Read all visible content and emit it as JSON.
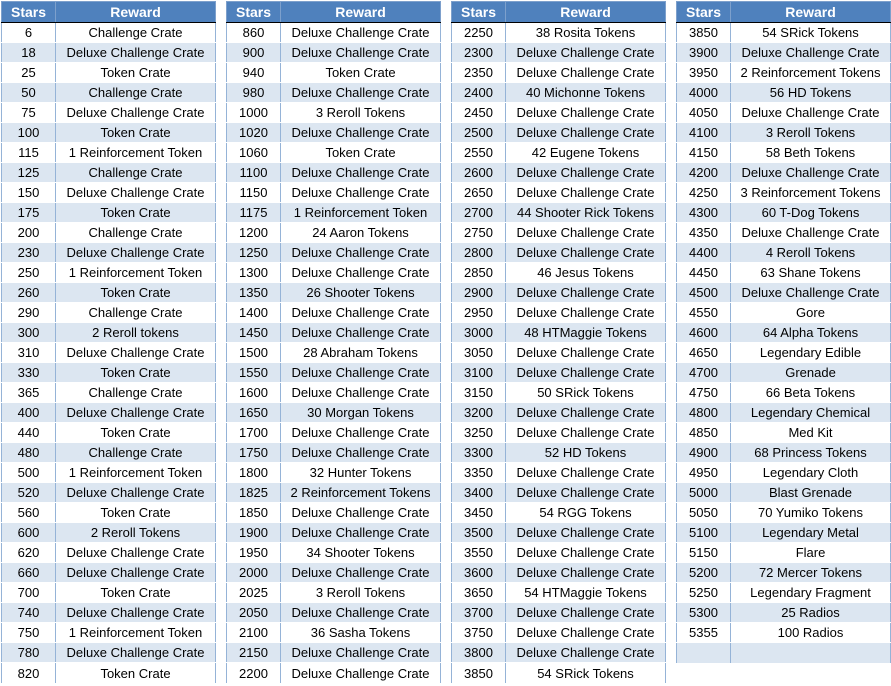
{
  "header": {
    "stars": "Stars",
    "reward": "Reward"
  },
  "tables": [
    {
      "rows": [
        [
          "6",
          "Challenge Crate"
        ],
        [
          "18",
          "Deluxe Challenge Crate"
        ],
        [
          "25",
          "Token Crate"
        ],
        [
          "50",
          "Challenge Crate"
        ],
        [
          "75",
          "Deluxe Challenge Crate"
        ],
        [
          "100",
          "Token Crate"
        ],
        [
          "115",
          "1 Reinforcement Token"
        ],
        [
          "125",
          "Challenge Crate"
        ],
        [
          "150",
          "Deluxe Challenge Crate"
        ],
        [
          "175",
          "Token Crate"
        ],
        [
          "200",
          "Challenge Crate"
        ],
        [
          "230",
          "Deluxe Challenge Crate"
        ],
        [
          "250",
          "1 Reinforcement Token"
        ],
        [
          "260",
          "Token Crate"
        ],
        [
          "290",
          "Challenge Crate"
        ],
        [
          "300",
          "2 Reroll tokens"
        ],
        [
          "310",
          "Deluxe Challenge Crate"
        ],
        [
          "330",
          "Token Crate"
        ],
        [
          "365",
          "Challenge Crate"
        ],
        [
          "400",
          "Deluxe Challenge Crate"
        ],
        [
          "440",
          "Token Crate"
        ],
        [
          "480",
          "Challenge Crate"
        ],
        [
          "500",
          "1 Reinforcement Token"
        ],
        [
          "520",
          "Deluxe Challenge Crate"
        ],
        [
          "560",
          "Token Crate"
        ],
        [
          "600",
          "2 Reroll Tokens"
        ],
        [
          "620",
          "Deluxe Challenge Crate"
        ],
        [
          "660",
          "Deluxe Challenge Crate"
        ],
        [
          "700",
          "Token Crate"
        ],
        [
          "740",
          "Deluxe Challenge Crate"
        ],
        [
          "750",
          "1 Reinforcement Token"
        ],
        [
          "780",
          "Deluxe Challenge Crate"
        ],
        [
          "820",
          "Token Crate"
        ]
      ]
    },
    {
      "rows": [
        [
          "860",
          "Deluxe Challenge Crate"
        ],
        [
          "900",
          "Deluxe Challenge Crate"
        ],
        [
          "940",
          "Token Crate"
        ],
        [
          "980",
          "Deluxe Challenge Crate"
        ],
        [
          "1000",
          "3 Reroll Tokens"
        ],
        [
          "1020",
          "Deluxe Challenge Crate"
        ],
        [
          "1060",
          "Token Crate"
        ],
        [
          "1100",
          "Deluxe Challenge Crate"
        ],
        [
          "1150",
          "Deluxe Challenge Crate"
        ],
        [
          "1175",
          "1 Reinforcement Token"
        ],
        [
          "1200",
          "24 Aaron Tokens"
        ],
        [
          "1250",
          "Deluxe Challenge Crate"
        ],
        [
          "1300",
          "Deluxe Challenge Crate"
        ],
        [
          "1350",
          "26 Shooter Tokens"
        ],
        [
          "1400",
          "Deluxe Challenge Crate"
        ],
        [
          "1450",
          "Deluxe Challenge Crate"
        ],
        [
          "1500",
          "28 Abraham Tokens"
        ],
        [
          "1550",
          "Deluxe Challenge Crate"
        ],
        [
          "1600",
          "Deluxe Challenge Crate"
        ],
        [
          "1650",
          "30 Morgan Tokens"
        ],
        [
          "1700",
          "Deluxe Challenge Crate"
        ],
        [
          "1750",
          "Deluxe Challenge Crate"
        ],
        [
          "1800",
          "32 Hunter Tokens"
        ],
        [
          "1825",
          "2 Reinforcement Tokens"
        ],
        [
          "1850",
          "Deluxe Challenge Crate"
        ],
        [
          "1900",
          "Deluxe Challenge Crate"
        ],
        [
          "1950",
          "34 Shooter Tokens"
        ],
        [
          "2000",
          "Deluxe Challenge Crate"
        ],
        [
          "2025",
          "3 Reroll Tokens"
        ],
        [
          "2050",
          "Deluxe Challenge Crate"
        ],
        [
          "2100",
          "36 Sasha Tokens"
        ],
        [
          "2150",
          "Deluxe Challenge Crate"
        ],
        [
          "2200",
          "Deluxe Challenge Crate"
        ]
      ]
    },
    {
      "rows": [
        [
          "2250",
          "38 Rosita Tokens"
        ],
        [
          "2300",
          "Deluxe Challenge Crate"
        ],
        [
          "2350",
          "Deluxe Challenge Crate"
        ],
        [
          "2400",
          "40 Michonne Tokens"
        ],
        [
          "2450",
          "Deluxe Challenge Crate"
        ],
        [
          "2500",
          "Deluxe Challenge Crate"
        ],
        [
          "2550",
          "42 Eugene Tokens"
        ],
        [
          "2600",
          "Deluxe Challenge Crate"
        ],
        [
          "2650",
          "Deluxe Challenge Crate"
        ],
        [
          "2700",
          "44 Shooter Rick Tokens"
        ],
        [
          "2750",
          "Deluxe Challenge Crate"
        ],
        [
          "2800",
          "Deluxe Challenge Crate"
        ],
        [
          "2850",
          "46 Jesus Tokens"
        ],
        [
          "2900",
          "Deluxe Challenge Crate"
        ],
        [
          "2950",
          "Deluxe Challenge Crate"
        ],
        [
          "3000",
          "48 HTMaggie Tokens"
        ],
        [
          "3050",
          "Deluxe Challenge Crate"
        ],
        [
          "3100",
          "Deluxe Challenge Crate"
        ],
        [
          "3150",
          "50 SRick Tokens"
        ],
        [
          "3200",
          "Deluxe Challenge Crate"
        ],
        [
          "3250",
          "Deluxe Challenge Crate"
        ],
        [
          "3300",
          "52 HD Tokens"
        ],
        [
          "3350",
          "Deluxe Challenge Crate"
        ],
        [
          "3400",
          "Deluxe Challenge Crate"
        ],
        [
          "3450",
          "54 RGG Tokens"
        ],
        [
          "3500",
          "Deluxe Challenge Crate"
        ],
        [
          "3550",
          "Deluxe Challenge Crate"
        ],
        [
          "3600",
          "Deluxe Challenge Crate"
        ],
        [
          "3650",
          "54 HTMaggie Tokens"
        ],
        [
          "3700",
          "Deluxe Challenge Crate"
        ],
        [
          "3750",
          "Deluxe Challenge Crate"
        ],
        [
          "3800",
          "Deluxe Challenge Crate"
        ],
        [
          "3850",
          "54 SRick Tokens"
        ]
      ]
    },
    {
      "rows": [
        [
          "3850",
          "54 SRick Tokens"
        ],
        [
          "3900",
          "Deluxe Challenge Crate"
        ],
        [
          "3950",
          "2 Reinforcement Tokens"
        ],
        [
          "4000",
          "56 HD Tokens"
        ],
        [
          "4050",
          "Deluxe Challenge Crate"
        ],
        [
          "4100",
          "3 Reroll Tokens"
        ],
        [
          "4150",
          "58 Beth Tokens"
        ],
        [
          "4200",
          "Deluxe Challenge Crate"
        ],
        [
          "4250",
          "3 Reinforcement Tokens"
        ],
        [
          "4300",
          "60 T-Dog Tokens"
        ],
        [
          "4350",
          "Deluxe Challenge Crate"
        ],
        [
          "4400",
          "4 Reroll Tokens"
        ],
        [
          "4450",
          "63 Shane Tokens"
        ],
        [
          "4500",
          "Deluxe Challenge Crate"
        ],
        [
          "4550",
          "Gore"
        ],
        [
          "4600",
          "64 Alpha Tokens"
        ],
        [
          "4650",
          "Legendary Edible"
        ],
        [
          "4700",
          "Grenade"
        ],
        [
          "4750",
          "66 Beta Tokens"
        ],
        [
          "4800",
          "Legendary Chemical"
        ],
        [
          "4850",
          "Med Kit"
        ],
        [
          "4900",
          "68 Princess Tokens"
        ],
        [
          "4950",
          "Legendary Cloth"
        ],
        [
          "5000",
          "Blast Grenade"
        ],
        [
          "5050",
          "70 Yumiko Tokens"
        ],
        [
          "5100",
          "Legendary Metal"
        ],
        [
          "5150",
          "Flare"
        ],
        [
          "5200",
          "72 Mercer Tokens"
        ],
        [
          "5250",
          "Legendary Fragment"
        ],
        [
          "5300",
          "25 Radios"
        ],
        [
          "5355",
          "100 Radios"
        ],
        [
          "",
          ""
        ]
      ]
    }
  ]
}
